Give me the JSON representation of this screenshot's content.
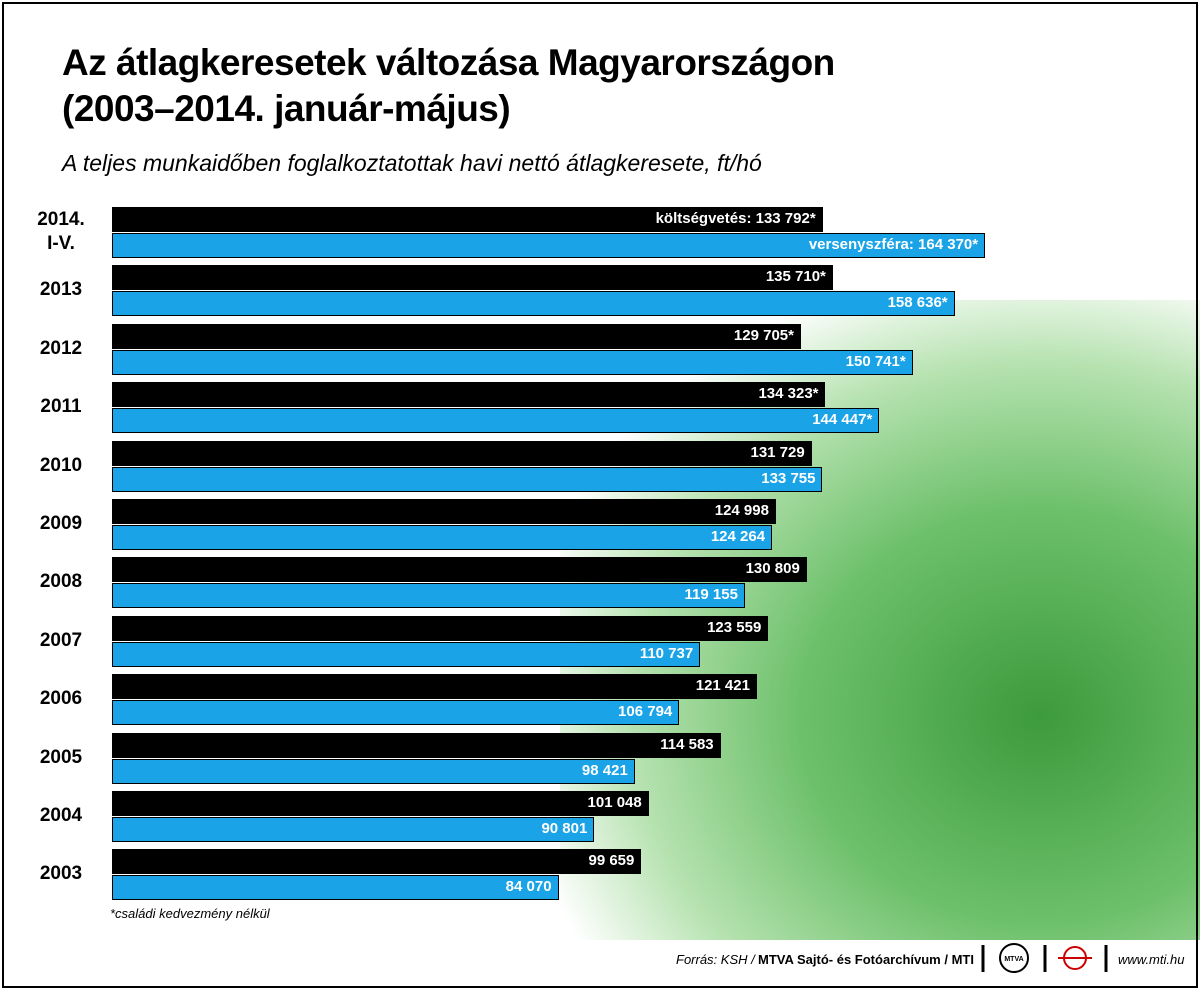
{
  "chart_data": {
    "type": "grouped-barh",
    "title": "Az átlagkeresetek változása Magyarországon\n(2003–2014. január-május)",
    "subtitle": "A teljes munkaidőben foglalkoztatottak havi nettó átlagkeresete, ft/hó",
    "categories": [
      "2014.\nI-V.",
      "2013",
      "2012",
      "2011",
      "2010",
      "2009",
      "2008",
      "2007",
      "2006",
      "2005",
      "2004",
      "2003"
    ],
    "series": [
      {
        "color": "#000000",
        "values": [
          133792,
          135710,
          129705,
          134323,
          131729,
          124998,
          130809,
          123559,
          121421,
          114583,
          101048,
          99659
        ],
        "value_labels": [
          "költségvetés: 133 792*",
          "135 710*",
          "129 705*",
          "134 323*",
          "131 729",
          "124 998",
          "130 809",
          "123 559",
          "121 421",
          "114 583",
          "101 048",
          "99 659"
        ]
      },
      {
        "color": "#1aa3e6",
        "values": [
          164370,
          158636,
          150741,
          144447,
          133755,
          124264,
          119155,
          110737,
          106794,
          98421,
          90801,
          84070
        ],
        "value_labels": [
          "versenyszféra: 164 370*",
          "158 636*",
          "150 741*",
          "144 447*",
          "133 755",
          "124 264",
          "119 155",
          "110 737",
          "106 794",
          "98 421",
          "90 801",
          "84 070"
        ]
      }
    ],
    "xlim": [
      0,
      170000
    ],
    "note": "*családi kedvezmény nélkül",
    "source": "Forrás: KSH /",
    "credit": "MTVA Sajtó- és Fotóarchívum / MTI",
    "logo": "MTVA",
    "url": "www.mti.hu"
  }
}
